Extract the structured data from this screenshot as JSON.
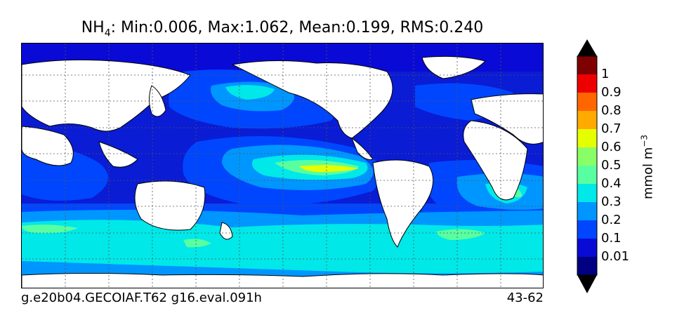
{
  "title": {
    "species": "NH",
    "species_sub": "4",
    "stats": ": Min:0.006, Max:1.062, Mean:0.199, RMS:0.240"
  },
  "footer": {
    "case_name": "g.e20b04.GECOIAF.T62 g16.eval.091h",
    "years": "43-62"
  },
  "colorbar": {
    "units_base": "mmol m",
    "units_exp": "−3",
    "ticks": [
      "1",
      "0.9",
      "0.8",
      "0.7",
      "0.6",
      "0.5",
      "0.4",
      "0.3",
      "0.2",
      "0.1",
      "0.01"
    ],
    "colors": [
      "#7f0000",
      "#ee0000",
      "#ff6600",
      "#ffaa00",
      "#e6ff00",
      "#88ff66",
      "#58ffa0",
      "#00e8e8",
      "#0096ff",
      "#0046ff",
      "#0a0ad6",
      "#000080"
    ],
    "extend_color": "#000000"
  },
  "map": {
    "projection": "cylindrical, Pacific-centered",
    "land_color": "#ffffff",
    "ocean_base_color": "#0a1cd4",
    "gridlines": "dotted",
    "field": "surface NH4 concentration"
  }
}
